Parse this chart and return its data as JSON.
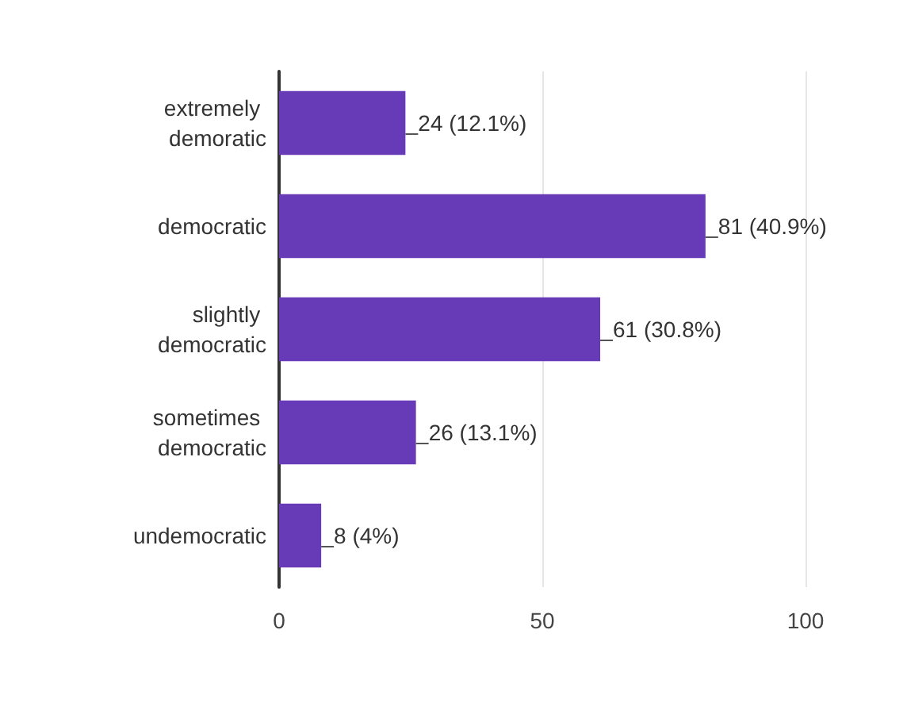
{
  "chart_data": {
    "type": "bar",
    "orientation": "horizontal",
    "categories": [
      "extremely demoratic",
      "democratic",
      "slightly democratic",
      "sometimes democratic",
      "undemocratic"
    ],
    "values": [
      24,
      81,
      61,
      26,
      8
    ],
    "value_labels": [
      "24 (12.1%)",
      "81 (40.9%)",
      "61 (30.8%)",
      "26 (13.1%)",
      "8 (4%)"
    ],
    "color": "#673ab7",
    "xlim": [
      0,
      100
    ],
    "xticks": [
      0,
      50,
      100
    ],
    "grid": "x"
  }
}
